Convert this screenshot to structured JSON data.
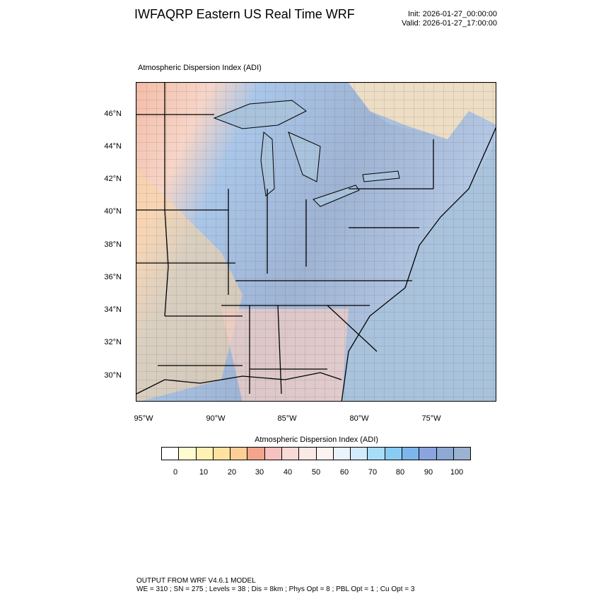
{
  "header": {
    "title": "IWFAQRP Eastern US Real Time WRF",
    "init": "Init: 2026-01-27_00:00:00",
    "valid": "Valid: 2026-01-27_17:00:00"
  },
  "map": {
    "label": "Atmospheric Dispersion Index   (ADI)",
    "lat_ticks": [
      "46°N",
      "44°N",
      "42°N",
      "40°N",
      "38°N",
      "36°N",
      "34°N",
      "32°N",
      "30°N"
    ],
    "lon_ticks": [
      "95°W",
      "90°W",
      "85°W",
      "80°W",
      "75°W"
    ],
    "ocean_color": "#a9c3dc",
    "land_low_color": "#f2c3b0",
    "land_high_color": "#9fb4d6"
  },
  "legend": {
    "title": "Atmospheric Dispersion Index  (ADI)",
    "tick_labels": [
      "0",
      "10",
      "20",
      "30",
      "40",
      "50",
      "60",
      "70",
      "80",
      "90",
      "100"
    ],
    "colors": [
      "#ffffff",
      "#fffbd0",
      "#fff0b4",
      "#ffe2a0",
      "#fccf96",
      "#f4a48c",
      "#f6c2c0",
      "#f8dad6",
      "#fbe9e6",
      "#fdf3f1",
      "#ebf3ff",
      "#d3ebff",
      "#a8ddf8",
      "#89ccf2",
      "#7eb5ea",
      "#8ba4e0",
      "#8ea9d4",
      "#9bb3d0"
    ]
  },
  "footer": {
    "line1": "OUTPUT FROM WRF V4.6.1 MODEL",
    "line2": "WE = 310 ; SN = 275 ; Levels = 38 ; Dis = 8km ; Phys Opt = 8 ; PBL Opt = 1 ; Cu Opt = 3"
  }
}
